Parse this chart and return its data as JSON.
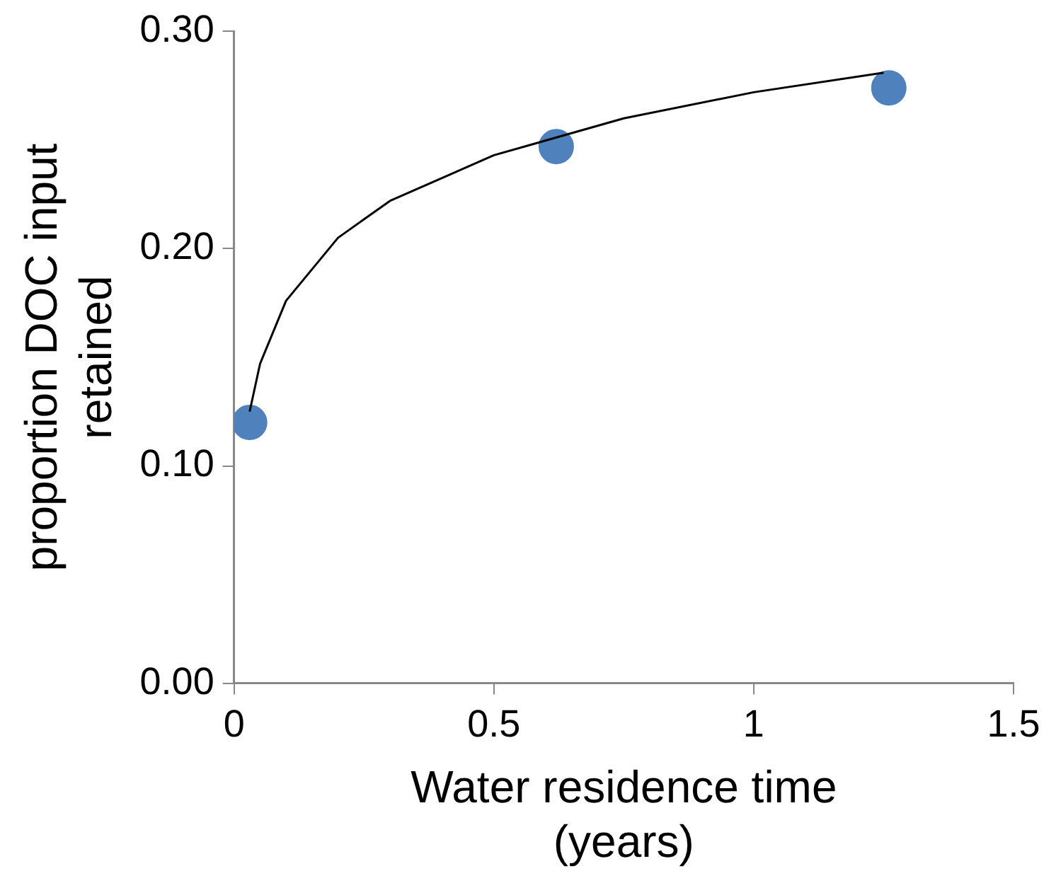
{
  "chart_data": {
    "type": "scatter",
    "xlabel": "Water residence time\n(years)",
    "ylabel": "proportion DOC input\nretained",
    "xlim": [
      0,
      1.5
    ],
    "xticks": [
      0,
      0.5,
      1,
      1.5
    ],
    "ylim": [
      0,
      0.3
    ],
    "yticks": [
      {
        "value": 0,
        "label": "0.00"
      },
      {
        "value": 0.1,
        "label": "0.10"
      },
      {
        "value": 0.2,
        "label": "0.20"
      },
      {
        "value": 0.3,
        "label": "0.30"
      }
    ],
    "grid": false,
    "legend": false,
    "series": [
      {
        "type": "scatter",
        "color": "#4f81bd",
        "marker": "circle",
        "x": [
          0.03,
          0.62,
          1.26
        ],
        "values": [
          0.12,
          0.247,
          0.274
        ]
      },
      {
        "type": "line",
        "color": "#000000",
        "marker": "none",
        "x": [
          0.03,
          0.05,
          0.1,
          0.2,
          0.3,
          0.5,
          0.75,
          1.0,
          1.25
        ],
        "values": [
          0.125,
          0.147,
          0.176,
          0.205,
          0.222,
          0.243,
          0.26,
          0.272,
          0.281
        ]
      }
    ]
  }
}
